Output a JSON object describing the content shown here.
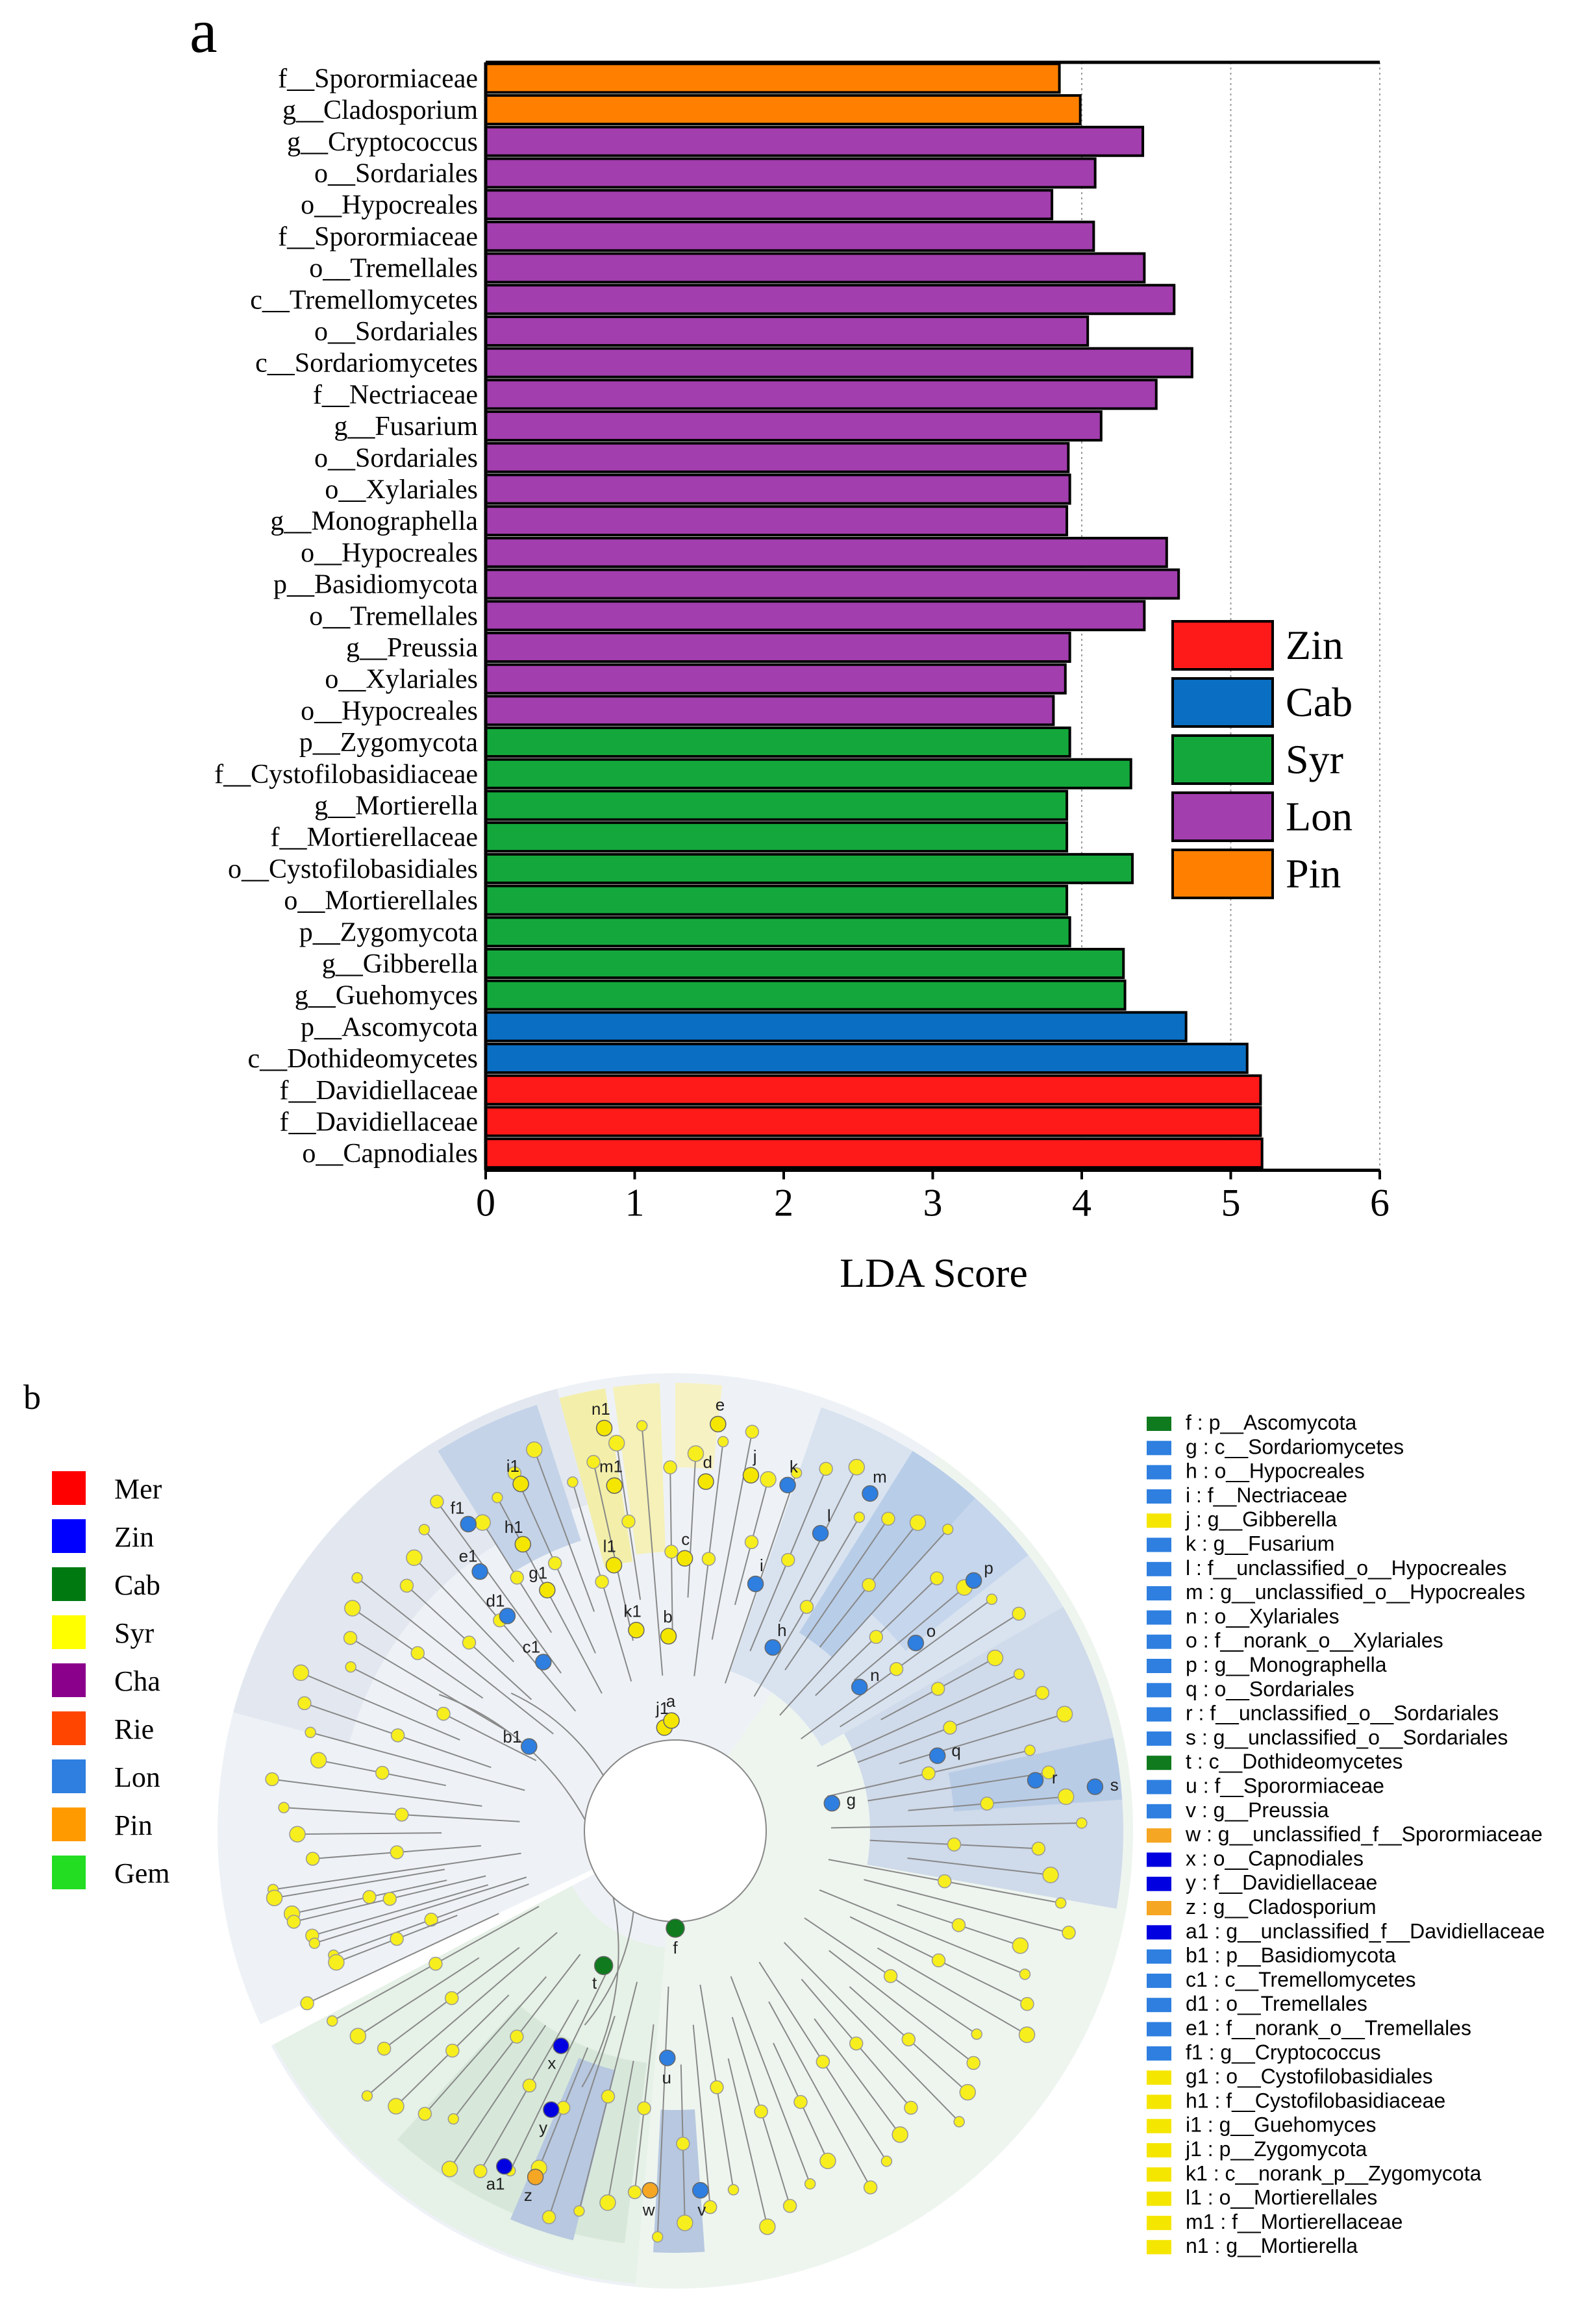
{
  "chart_data": [
    {
      "type": "bar",
      "orientation": "horizontal",
      "panel_label": "a",
      "xlabel": "LDA Score",
      "xlim": [
        0,
        6
      ],
      "xticks": [
        0,
        1,
        2,
        3,
        4,
        5,
        6
      ],
      "grid": "dotted vertical at 4, 5, 6",
      "legend_position": "right",
      "legend": [
        {
          "name": "Zin",
          "color": "#FF1A1A"
        },
        {
          "name": "Cab",
          "color": "#0A6FC2"
        },
        {
          "name": "Syr",
          "color": "#14A83C"
        },
        {
          "name": "Lon",
          "color": "#A23EAE"
        },
        {
          "name": "Pin",
          "color": "#FF8000"
        }
      ],
      "bars": [
        {
          "label": "f__Sporormiaceae",
          "value": 3.85,
          "group": "Pin"
        },
        {
          "label": "g__Cladosporium",
          "value": 3.99,
          "group": "Pin"
        },
        {
          "label": "g__Cryptococcus",
          "value": 4.41,
          "group": "Lon"
        },
        {
          "label": "o__Sordariales",
          "value": 4.09,
          "group": "Lon"
        },
        {
          "label": "o__Hypocreales",
          "value": 3.8,
          "group": "Lon"
        },
        {
          "label": "f__Sporormiaceae",
          "value": 4.08,
          "group": "Lon"
        },
        {
          "label": "o__Tremellales",
          "value": 4.42,
          "group": "Lon"
        },
        {
          "label": "c__Tremellomycetes",
          "value": 4.62,
          "group": "Lon"
        },
        {
          "label": "o__Sordariales",
          "value": 4.04,
          "group": "Lon"
        },
        {
          "label": "c__Sordariomycetes",
          "value": 4.74,
          "group": "Lon"
        },
        {
          "label": "f__Nectriaceae",
          "value": 4.5,
          "group": "Lon"
        },
        {
          "label": "g__Fusarium",
          "value": 4.13,
          "group": "Lon"
        },
        {
          "label": "o__Sordariales",
          "value": 3.91,
          "group": "Lon"
        },
        {
          "label": "o__Xylariales",
          "value": 3.92,
          "group": "Lon"
        },
        {
          "label": "g__Monographella",
          "value": 3.9,
          "group": "Lon"
        },
        {
          "label": "o__Hypocreales",
          "value": 4.57,
          "group": "Lon"
        },
        {
          "label": "p__Basidiomycota",
          "value": 4.65,
          "group": "Lon"
        },
        {
          "label": "o__Tremellales",
          "value": 4.42,
          "group": "Lon"
        },
        {
          "label": "g__Preussia",
          "value": 3.92,
          "group": "Lon"
        },
        {
          "label": "o__Xylariales",
          "value": 3.89,
          "group": "Lon"
        },
        {
          "label": "o__Hypocreales",
          "value": 3.81,
          "group": "Lon"
        },
        {
          "label": "p__Zygomycota",
          "value": 3.92,
          "group": "Syr"
        },
        {
          "label": "f__Cystofilobasidiaceae",
          "value": 4.33,
          "group": "Syr"
        },
        {
          "label": "g__Mortierella",
          "value": 3.9,
          "group": "Syr"
        },
        {
          "label": "f__Mortierellaceae",
          "value": 3.9,
          "group": "Syr"
        },
        {
          "label": "o__Cystofilobasidiales",
          "value": 4.34,
          "group": "Syr"
        },
        {
          "label": "o__Mortierellales",
          "value": 3.9,
          "group": "Syr"
        },
        {
          "label": "p__Zygomycota",
          "value": 3.92,
          "group": "Syr"
        },
        {
          "label": "g__Gibberella",
          "value": 4.28,
          "group": "Syr"
        },
        {
          "label": "g__Guehomyces",
          "value": 4.29,
          "group": "Syr"
        },
        {
          "label": "p__Ascomycota",
          "value": 4.7,
          "group": "Cab"
        },
        {
          "label": "c__Dothideomycetes",
          "value": 5.11,
          "group": "Cab"
        },
        {
          "label": "f__Davidiellaceae",
          "value": 5.2,
          "group": "Zin"
        },
        {
          "label": "f__Davidiellaceae",
          "value": 5.2,
          "group": "Zin"
        },
        {
          "label": "o__Capnodiales",
          "value": 5.21,
          "group": "Zin"
        }
      ]
    },
    {
      "type": "cladogram",
      "panel_label": "b",
      "group_legend": [
        {
          "name": "Mer",
          "color": "#FF0000"
        },
        {
          "name": "Zin",
          "color": "#0000FF"
        },
        {
          "name": "Cab",
          "color": "#007A10"
        },
        {
          "name": "Syr",
          "color": "#FFFF00"
        },
        {
          "name": "Cha",
          "color": "#8B008B"
        },
        {
          "name": "Rie",
          "color": "#FF4500"
        },
        {
          "name": "Lon",
          "color": "#2E7FE0"
        },
        {
          "name": "Pin",
          "color": "#FF9A00"
        },
        {
          "name": "Gem",
          "color": "#22DD22"
        }
      ],
      "taxa": [
        {
          "text": "f : p__Ascomycota",
          "color": "#0F7A1E"
        },
        {
          "text": "g : c__Sordariomycetes",
          "color": "#2E7FE0"
        },
        {
          "text": "h : o__Hypocreales",
          "color": "#2E7FE0"
        },
        {
          "text": "i : f__Nectriaceae",
          "color": "#2E7FE0"
        },
        {
          "text": "j : g__Gibberella",
          "color": "#F5E600"
        },
        {
          "text": "k : g__Fusarium",
          "color": "#2E7FE0"
        },
        {
          "text": "l : f__unclassified_o__Hypocreales",
          "color": "#2E7FE0"
        },
        {
          "text": "m : g__unclassified_o__Hypocreales",
          "color": "#2E7FE0"
        },
        {
          "text": "n : o__Xylariales",
          "color": "#2E7FE0"
        },
        {
          "text": "o : f__norank_o__Xylariales",
          "color": "#2E7FE0"
        },
        {
          "text": "p : g__Monographella",
          "color": "#2E7FE0"
        },
        {
          "text": "q : o__Sordariales",
          "color": "#2E7FE0"
        },
        {
          "text": "r : f__unclassified_o__Sordariales",
          "color": "#2E7FE0"
        },
        {
          "text": "s : g__unclassified_o__Sordariales",
          "color": "#2E7FE0"
        },
        {
          "text": "t : c__Dothideomycetes",
          "color": "#0F7A1E"
        },
        {
          "text": "u : f__Sporormiaceae",
          "color": "#2E7FE0"
        },
        {
          "text": "v : g__Preussia",
          "color": "#2E7FE0"
        },
        {
          "text": "w : g__unclassified_f__Sporormiaceae",
          "color": "#F5A623"
        },
        {
          "text": "x : o__Capnodiales",
          "color": "#0000E0"
        },
        {
          "text": "y : f__Davidiellaceae",
          "color": "#0000E0"
        },
        {
          "text": "z : g__Cladosporium",
          "color": "#F5A623"
        },
        {
          "text": "a1 : g__unclassified_f__Davidiellaceae",
          "color": "#0000E0"
        },
        {
          "text": "b1 : p__Basidiomycota",
          "color": "#2E7FE0"
        },
        {
          "text": "c1 : c__Tremellomycetes",
          "color": "#2E7FE0"
        },
        {
          "text": "d1 : o__Tremellales",
          "color": "#2E7FE0"
        },
        {
          "text": "e1 : f__norank_o__Tremellales",
          "color": "#2E7FE0"
        },
        {
          "text": "f1 : g__Cryptococcus",
          "color": "#2E7FE0"
        },
        {
          "text": "g1 : o__Cystofilobasidiales",
          "color": "#F5E600"
        },
        {
          "text": "h1 : f__Cystofilobasidiaceae",
          "color": "#F5E600"
        },
        {
          "text": "i1 : g__Guehomyces",
          "color": "#F5E600"
        },
        {
          "text": "j1 : p__Zygomycota",
          "color": "#F5E600"
        },
        {
          "text": "k1 : c__norank_p__Zygomycota",
          "color": "#F5E600"
        },
        {
          "text": "l1 : o__Mortierellales",
          "color": "#F5E600"
        },
        {
          "text": "m1 : f__Mortierellaceae",
          "color": "#F5E600"
        },
        {
          "text": "n1 : g__Mortierella",
          "color": "#F5E600"
        }
      ],
      "node_labels": [
        {
          "id": "f",
          "color": "#0F7A1E"
        },
        {
          "id": "t",
          "color": "#0F7A1E"
        },
        {
          "id": "g",
          "color": "#2E7FE0"
        },
        {
          "id": "h",
          "color": "#2E7FE0"
        },
        {
          "id": "i",
          "color": "#2E7FE0"
        },
        {
          "id": "j",
          "color": "#F5E600"
        },
        {
          "id": "k",
          "color": "#2E7FE0"
        },
        {
          "id": "l",
          "color": "#2E7FE0"
        },
        {
          "id": "m",
          "color": "#2E7FE0"
        },
        {
          "id": "n",
          "color": "#2E7FE0"
        },
        {
          "id": "o",
          "color": "#2E7FE0"
        },
        {
          "id": "p",
          "color": "#2E7FE0"
        },
        {
          "id": "q",
          "color": "#2E7FE0"
        },
        {
          "id": "r",
          "color": "#2E7FE0"
        },
        {
          "id": "s",
          "color": "#2E7FE0"
        },
        {
          "id": "u",
          "color": "#2E7FE0"
        },
        {
          "id": "v",
          "color": "#2E7FE0"
        },
        {
          "id": "w",
          "color": "#F5A623"
        },
        {
          "id": "x",
          "color": "#0000E0"
        },
        {
          "id": "y",
          "color": "#0000E0"
        },
        {
          "id": "z",
          "color": "#F5A623"
        },
        {
          "id": "a1",
          "color": "#0000E0"
        },
        {
          "id": "b1",
          "color": "#2E7FE0"
        },
        {
          "id": "c1",
          "color": "#2E7FE0"
        },
        {
          "id": "d1",
          "color": "#2E7FE0"
        },
        {
          "id": "e1",
          "color": "#2E7FE0"
        },
        {
          "id": "f1",
          "color": "#2E7FE0"
        },
        {
          "id": "g1",
          "color": "#F5E600"
        },
        {
          "id": "h1",
          "color": "#F5E600"
        },
        {
          "id": "i1",
          "color": "#F5E600"
        },
        {
          "id": "j1",
          "color": "#F5E600"
        },
        {
          "id": "k1",
          "color": "#F5E600"
        },
        {
          "id": "l1",
          "color": "#F5E600"
        },
        {
          "id": "m1",
          "color": "#F5E600"
        },
        {
          "id": "n1",
          "color": "#F5E600"
        },
        {
          "id": "a",
          "color": "#F5E600"
        },
        {
          "id": "b",
          "color": "#F5E600"
        },
        {
          "id": "c",
          "color": "#F5E600"
        },
        {
          "id": "d",
          "color": "#F5E600"
        },
        {
          "id": "e",
          "color": "#F5E600"
        }
      ]
    }
  ]
}
